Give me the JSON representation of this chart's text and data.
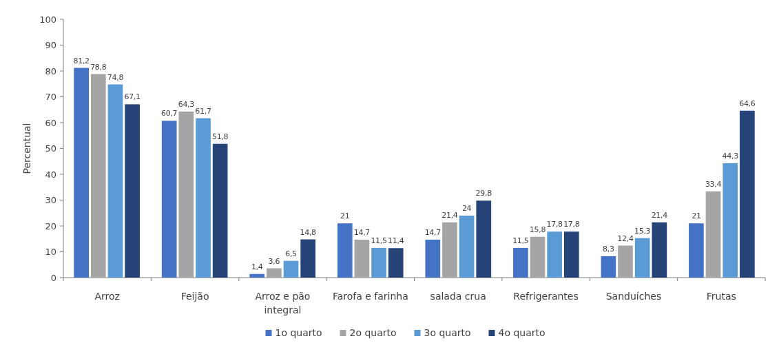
{
  "chart_data": {
    "type": "bar",
    "ylabel": "Percentual",
    "categories": [
      "Arroz",
      "Feijão",
      "Arroz e pão integral",
      "Farofa e farinha",
      "salada crua",
      "Refrigerantes",
      "Sanduíches",
      "Frutas"
    ],
    "series": [
      {
        "name": "1o quarto",
        "color": "#4472c4",
        "values": [
          81.2,
          60.7,
          1.4,
          21,
          14.7,
          11.5,
          8.3,
          21
        ],
        "value_labels": [
          "81,2",
          "60,7",
          "1,4",
          "21",
          "14,7",
          "11,5",
          "8,3",
          "21"
        ]
      },
      {
        "name": "2o quarto",
        "color": "#a5a5a5",
        "values": [
          78.8,
          64.3,
          3.6,
          14.7,
          21.4,
          15.8,
          12.4,
          33.4
        ],
        "value_labels": [
          "78,8",
          "64,3",
          "3,6",
          "14,7",
          "21,4",
          "15,8",
          "12,4",
          "33,4"
        ]
      },
      {
        "name": "3o quarto",
        "color": "#5b9bd5",
        "values": [
          74.8,
          61.7,
          6.5,
          11.5,
          24,
          17.8,
          15.3,
          44.3
        ],
        "value_labels": [
          "74,8",
          "61,7",
          "6,5",
          "11,5",
          "24",
          "17,8",
          "15,3",
          "44,3"
        ]
      },
      {
        "name": "4o quarto",
        "color": "#264478",
        "values": [
          67.1,
          51.8,
          14.8,
          11.4,
          29.8,
          17.8,
          21.4,
          64.6
        ],
        "value_labels": [
          "67,1",
          "51,8",
          "14,8",
          "11,4",
          "29,8",
          "17,8",
          "21,4",
          "64,6"
        ]
      }
    ],
    "ylim": [
      0,
      100
    ],
    "yticks": [
      0,
      10,
      20,
      30,
      40,
      50,
      60,
      70,
      80,
      90,
      100
    ],
    "grid": false,
    "legend": "bottom"
  }
}
